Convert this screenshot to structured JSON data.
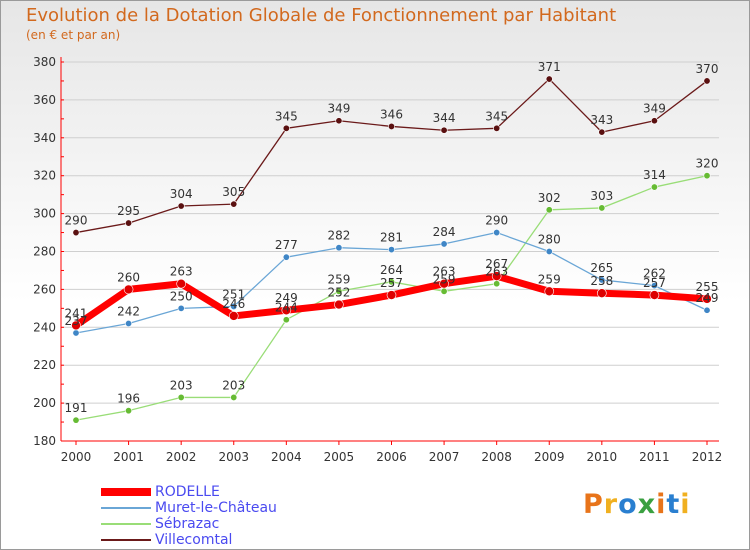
{
  "title": "Evolution de la Dotation Globale de Fonctionnement par Habitant",
  "subtitle": "(en € et par an)",
  "brand": "Proxiti",
  "colors": {
    "axis": "#ff0000",
    "grid": "#cfcfcf",
    "legend_text": "#4a4af0",
    "brand_letters": [
      "#e8741a",
      "#f0b020",
      "#2a7fd0",
      "#3aa040",
      "#e8741a",
      "#2a7fd0",
      "#f0b020"
    ]
  },
  "chart_data": {
    "type": "line",
    "title": "Evolution de la Dotation Globale de Fonctionnement par Habitant",
    "subtitle": "(en € et par an)",
    "x": [
      "2000",
      "2001",
      "2002",
      "2003",
      "2004",
      "2005",
      "2006",
      "2007",
      "2008",
      "2009",
      "2010",
      "2011",
      "2012"
    ],
    "ylim": [
      180,
      380
    ],
    "yticks": [
      180,
      200,
      220,
      240,
      260,
      280,
      300,
      320,
      340,
      360,
      380
    ],
    "grid": true,
    "legend_position": "bottom-left",
    "series": [
      {
        "name": "Villecomtal",
        "color": "#6b1a1a",
        "point_color": "#5a1010",
        "width": 1.3,
        "values": [
          290,
          295,
          304,
          305,
          345,
          349,
          346,
          344,
          345,
          371,
          343,
          349,
          370
        ]
      },
      {
        "name": "Sébrazac",
        "color": "#99dd77",
        "point_color": "#66bb33",
        "width": 1.3,
        "values": [
          191,
          196,
          203,
          203,
          244,
          259,
          264,
          259,
          263,
          302,
          303,
          314,
          320
        ]
      },
      {
        "name": "Muret-le-Château",
        "color": "#6aa6d6",
        "point_color": "#3f86c6",
        "width": 1.3,
        "values": [
          237,
          242,
          250,
          251,
          277,
          282,
          281,
          284,
          290,
          280,
          265,
          262,
          249
        ]
      },
      {
        "name": "RODELLE",
        "color": "#ff0000",
        "point_color": "#dd0000",
        "width": 7,
        "values": [
          241,
          260,
          263,
          246,
          249,
          252,
          257,
          263,
          267,
          259,
          258,
          257,
          255
        ]
      }
    ],
    "data_labels": [
      [
        290,
        295,
        304,
        305,
        345,
        349,
        346,
        344,
        345,
        371,
        343,
        349,
        370
      ],
      [
        191,
        196,
        203,
        203,
        244,
        259,
        264,
        259,
        263,
        302,
        303,
        314,
        320
      ],
      [
        237,
        242,
        250,
        251,
        277,
        282,
        281,
        284,
        290,
        280,
        265,
        262,
        249
      ],
      [
        241,
        260,
        263,
        246,
        249,
        252,
        257,
        263,
        267,
        259,
        258,
        257,
        255
      ]
    ],
    "legend_order": [
      "RODELLE",
      "Muret-le-Château",
      "Sébrazac",
      "Villecomtal"
    ]
  }
}
